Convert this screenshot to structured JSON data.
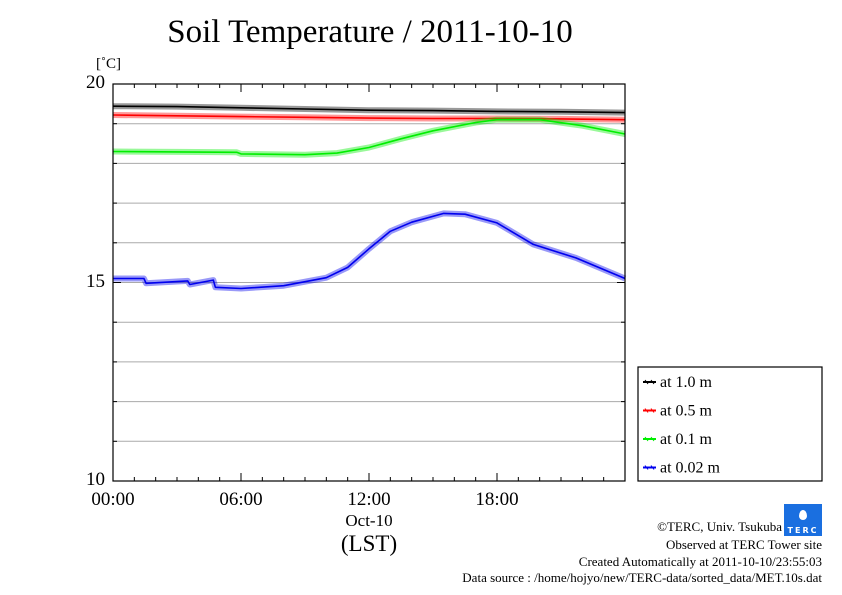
{
  "chart_data": {
    "type": "line",
    "title": "Soil Temperature / 2011-10-10",
    "ylabel": "[˚C]",
    "xlabel": "(LST)",
    "date_label": "Oct-10",
    "ylim": [
      10,
      20
    ],
    "xlim_hours": [
      0,
      24
    ],
    "yticks": [
      {
        "v": 20,
        "label": "20"
      },
      {
        "v": 15,
        "label": "15"
      },
      {
        "v": 10,
        "label": "10"
      }
    ],
    "xticks": [
      {
        "h": 0,
        "label": "00:00"
      },
      {
        "h": 6,
        "label": "06:00"
      },
      {
        "h": 12,
        "label": "12:00"
      },
      {
        "h": 18,
        "label": "18:00"
      }
    ],
    "grid": true,
    "legend_position": "right-bottom",
    "series": [
      {
        "name": "at 1.0 m",
        "color": "#000000",
        "x": [
          0,
          3,
          6,
          9,
          12,
          15,
          18,
          21,
          24
        ],
        "y": [
          19.44,
          19.43,
          19.4,
          19.37,
          19.34,
          19.33,
          19.31,
          19.3,
          19.28
        ]
      },
      {
        "name": "at 0.5 m",
        "color": "#ff0000",
        "x": [
          0,
          3,
          6,
          9,
          12,
          15,
          18,
          21,
          24
        ],
        "y": [
          19.22,
          19.2,
          19.18,
          19.16,
          19.14,
          19.13,
          19.13,
          19.12,
          19.1
        ]
      },
      {
        "name": "at 0.1 m",
        "color": "#00ee00",
        "x": [
          0,
          3,
          5.8,
          6,
          9,
          10.5,
          12,
          13.5,
          15,
          17,
          18,
          20,
          22,
          24
        ],
        "y": [
          18.3,
          18.29,
          18.28,
          18.24,
          18.22,
          18.26,
          18.4,
          18.62,
          18.82,
          19.03,
          19.1,
          19.1,
          18.95,
          18.74
        ]
      },
      {
        "name": "at 0.02 m",
        "color": "#0000ee",
        "x": [
          0,
          1.45,
          1.55,
          3.5,
          3.6,
          4.7,
          4.8,
          6,
          8,
          10,
          11,
          12,
          13,
          14,
          15.5,
          16.5,
          18,
          19.7,
          21.7,
          24
        ],
        "y": [
          15.1,
          15.1,
          14.98,
          15.04,
          14.95,
          15.06,
          14.88,
          14.85,
          14.92,
          15.12,
          15.38,
          15.85,
          16.29,
          16.52,
          16.74,
          16.72,
          16.5,
          15.96,
          15.62,
          15.1
        ]
      }
    ]
  },
  "footer": {
    "copyright": "©TERC, Univ. Tsukuba",
    "observed": "Observed at TERC Tower site",
    "created": "Created Automatically at 2011-10-10/23:55:03",
    "source": "Data source : /home/hojyo/new/TERC-data/sorted_data/MET.10s.dat",
    "logo_text": "TERC"
  }
}
